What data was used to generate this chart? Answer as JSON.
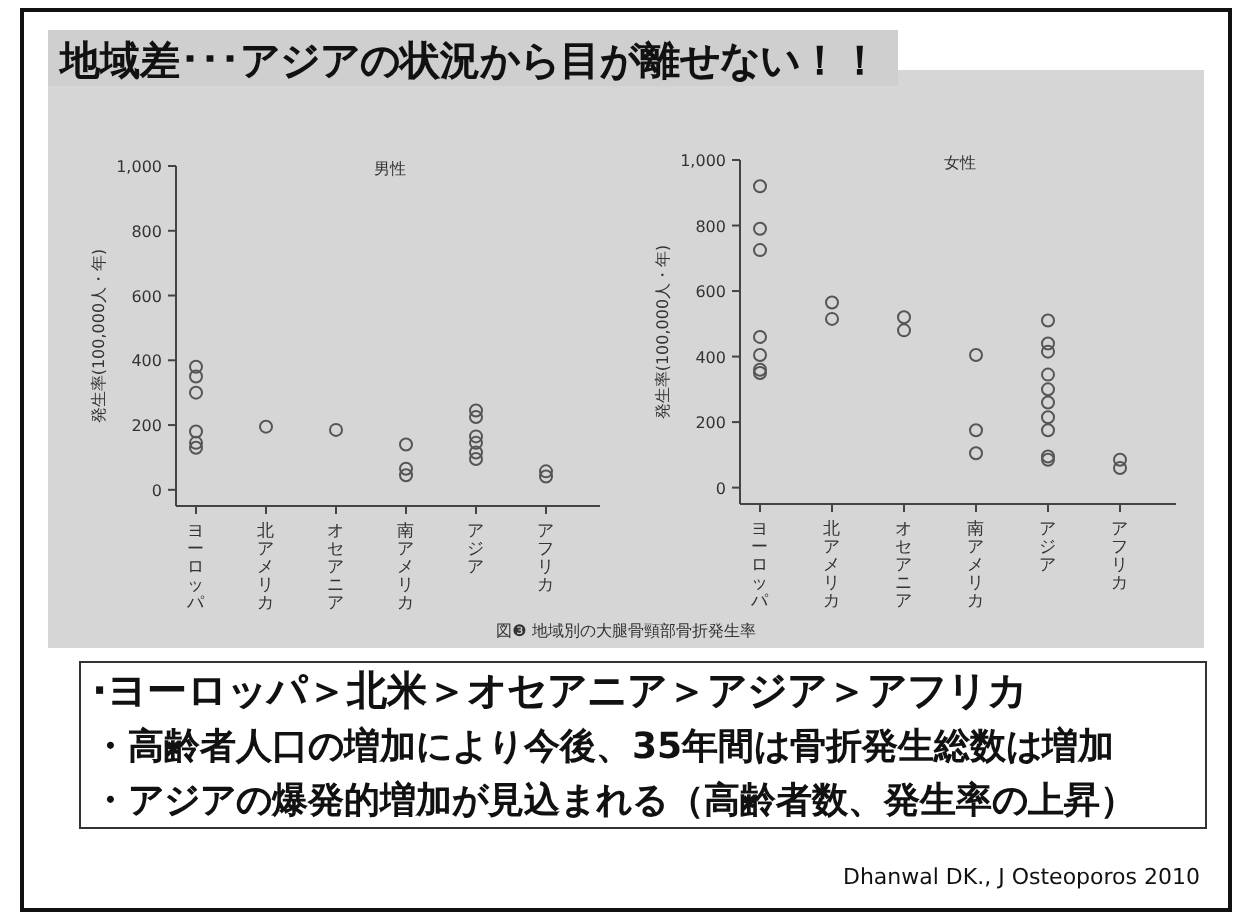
{
  "chart_data": [
    {
      "type": "other",
      "title": "地域差･･･アジアの状況から目が離せない！！",
      "annotations": [
        "図❸ 地域別の大腿骨頸部骨折発生率",
        "·ヨーロッパ＞北米＞オセアニア＞アジア＞アフリカ",
        "・高齢者人口の増加により今後、35年間は骨折発生総数は増加",
        "・アジアの爆発的増加が見込まれる（高齢者数、発生率の上昇）",
        "Dhanwal DK., J Osteoporos 2010"
      ]
    },
    {
      "type": "scatter",
      "title": "男性",
      "ylabel": "発生率(100,000人・年)",
      "categories": [
        "ヨーロッパ",
        "北アメリカ",
        "オセアニア",
        "南アメリカ",
        "アジア",
        "アフリカ"
      ],
      "ylim": [
        -50,
        1000
      ],
      "yticks": [
        0,
        200,
        400,
        600,
        800,
        {
          "value": 1000,
          "label": "1,000"
        }
      ],
      "marker": "circle",
      "series": [
        {
          "color": "#555555",
          "x": [
            "ヨーロッパ",
            "ヨーロッパ",
            "ヨーロッパ",
            "ヨーロッパ",
            "ヨーロッパ",
            "ヨーロッパ",
            "北アメリカ",
            "オセアニア",
            "南アメリカ",
            "南アメリカ",
            "南アメリカ",
            "アジア",
            "アジア",
            "アジア",
            "アジア",
            "アジア",
            "アジア",
            "アフリカ",
            "アフリカ"
          ],
          "values": [
            380,
            350,
            300,
            180,
            145,
            130,
            195,
            185,
            140,
            65,
            45,
            245,
            225,
            165,
            145,
            115,
            95,
            57,
            41
          ]
        }
      ]
    },
    {
      "type": "scatter",
      "title": "女性",
      "ylabel": "発生率(100,000人・年)",
      "categories": [
        "ヨーロッパ",
        "北アメリカ",
        "オセアニア",
        "南アメリカ",
        "アジア",
        "アフリカ"
      ],
      "ylim": [
        -50,
        1000
      ],
      "yticks": [
        0,
        200,
        400,
        600,
        800,
        {
          "value": 1000,
          "label": "1,000"
        }
      ],
      "marker": "circle",
      "series": [
        {
          "color": "#555555",
          "x": [
            "ヨーロッパ",
            "ヨーロッパ",
            "ヨーロッパ",
            "ヨーロッパ",
            "ヨーロッパ",
            "ヨーロッパ",
            "ヨーロッパ",
            "北アメリカ",
            "北アメリカ",
            "オセアニア",
            "オセアニア",
            "南アメリカ",
            "南アメリカ",
            "南アメリカ",
            "アジア",
            "アジア",
            "アジア",
            "アジア",
            "アジア",
            "アジア",
            "アジア",
            "アジア",
            "アジア",
            "アジア",
            "アフリカ",
            "アフリカ"
          ],
          "values": [
            920,
            790,
            725,
            460,
            405,
            360,
            350,
            565,
            515,
            520,
            480,
            405,
            175,
            105,
            510,
            440,
            415,
            345,
            300,
            260,
            215,
            175,
            95,
            85,
            85,
            60
          ]
        }
      ]
    }
  ]
}
